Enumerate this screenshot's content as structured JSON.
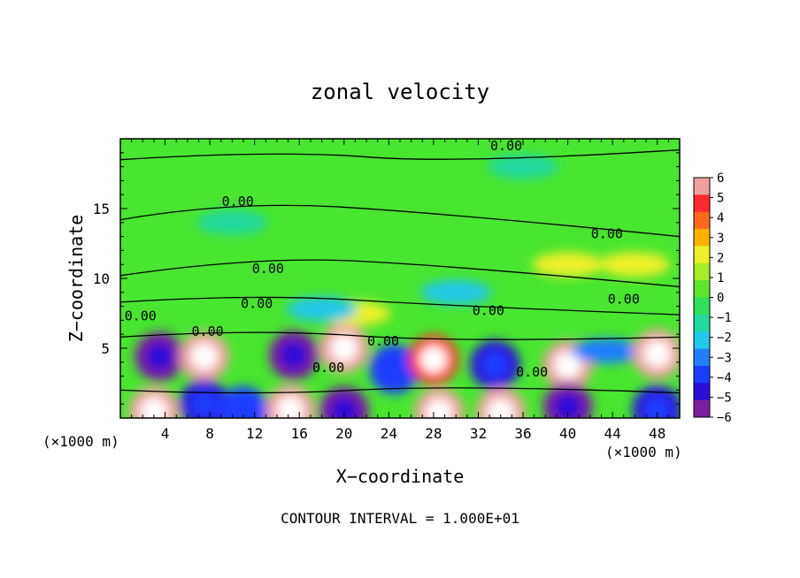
{
  "chart_data": {
    "type": "heatmap",
    "title": "zonal velocity",
    "xlabel": "X−coordinate",
    "ylabel": "Z−coordinate",
    "x_unit_left": "(×1000 m)",
    "x_unit_right": "(×1000 m)",
    "footer": "CONTOUR INTERVAL = 1.000E+01",
    "xlim": [
      0,
      50
    ],
    "ylim": [
      0,
      20
    ],
    "x_ticks": [
      "4",
      "8",
      "12",
      "16",
      "20",
      "24",
      "28",
      "32",
      "36",
      "40",
      "44",
      "48"
    ],
    "x_tick_values": [
      4,
      8,
      12,
      16,
      20,
      24,
      28,
      32,
      36,
      40,
      44,
      48
    ],
    "y_ticks": [
      "5",
      "10",
      "15"
    ],
    "y_tick_values": [
      5,
      10,
      15
    ],
    "colorbar": {
      "min": -6,
      "max": 6,
      "labels": [
        "6",
        "5",
        "4",
        "3",
        "2",
        "1",
        "0",
        "−1",
        "−2",
        "−3",
        "−4",
        "−5",
        "−6"
      ]
    },
    "contour_labels": [
      {
        "text": "0.00",
        "x": 34.5,
        "z": 19.5
      },
      {
        "text": "0.00",
        "x": 10.5,
        "z": 15.5
      },
      {
        "text": "0.00",
        "x": 43.5,
        "z": 13.2
      },
      {
        "text": "0.00",
        "x": 13.2,
        "z": 10.7
      },
      {
        "text": "0.00",
        "x": 12.2,
        "z": 8.2
      },
      {
        "text": "0.00",
        "x": 45.0,
        "z": 8.5
      },
      {
        "text": "0.00",
        "x": 1.8,
        "z": 7.3
      },
      {
        "text": "0.00",
        "x": 7.8,
        "z": 6.2
      },
      {
        "text": "0.00",
        "x": 32.9,
        "z": 7.7
      },
      {
        "text": "0.00",
        "x": 23.5,
        "z": 5.5
      },
      {
        "text": "0.00",
        "x": 18.6,
        "z": 3.6
      },
      {
        "text": "0.00",
        "x": 36.8,
        "z": 3.3
      }
    ],
    "features": [
      {
        "x": 3.5,
        "z": 4.4,
        "value": -6
      },
      {
        "x": 7.5,
        "z": 4.4,
        "value": 6
      },
      {
        "x": 7.5,
        "z": 1.0,
        "value": -5
      },
      {
        "x": 3.0,
        "z": 0.5,
        "value": 6
      },
      {
        "x": 11.0,
        "z": 0.5,
        "value": -4
      },
      {
        "x": 15.5,
        "z": 4.5,
        "value": -6
      },
      {
        "x": 15.2,
        "z": 0.6,
        "value": 6
      },
      {
        "x": 20.0,
        "z": 5.0,
        "value": 6
      },
      {
        "x": 20.0,
        "z": 0.5,
        "value": -6
      },
      {
        "x": 24.5,
        "z": 3.5,
        "value": -4
      },
      {
        "x": 28.0,
        "z": 4.2,
        "value": 5
      },
      {
        "x": 28.5,
        "z": 0.4,
        "value": 6
      },
      {
        "x": 33.5,
        "z": 3.8,
        "value": -5
      },
      {
        "x": 34.0,
        "z": 0.4,
        "value": 6
      },
      {
        "x": 40.0,
        "z": 3.8,
        "value": 6
      },
      {
        "x": 40.0,
        "z": 0.8,
        "value": -6
      },
      {
        "x": 43.5,
        "z": 4.8,
        "value": -3
      },
      {
        "x": 48.0,
        "z": 4.6,
        "value": 6
      },
      {
        "x": 48.0,
        "z": 0.6,
        "value": -5
      },
      {
        "x": 21.0,
        "z": 7.5,
        "value": 2
      },
      {
        "x": 40.0,
        "z": 11.0,
        "value": 2.5
      },
      {
        "x": 46.0,
        "z": 11.0,
        "value": 2
      },
      {
        "x": 30.0,
        "z": 9.0,
        "value": -2
      },
      {
        "x": 18.0,
        "z": 7.8,
        "value": -2
      },
      {
        "x": 36.0,
        "z": 18.0,
        "value": -1.5
      },
      {
        "x": 10.0,
        "z": 14.0,
        "value": -1
      }
    ]
  }
}
